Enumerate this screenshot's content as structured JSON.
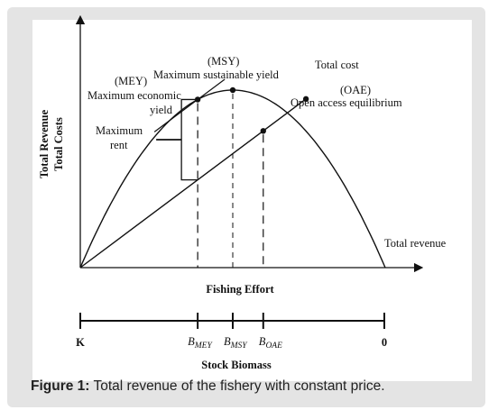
{
  "caption": {
    "prefix": "Figure 1:",
    "text": "Total revenue of the fishery with constant price."
  },
  "chart_data": {
    "type": "line",
    "xlabel": "Fishing Effort",
    "ylabel_line1": "Total Revenue",
    "ylabel_line2": "Total Costs",
    "xlim": [
      0,
      10
    ],
    "ylim": [
      0,
      10
    ],
    "series": [
      {
        "name": "Total revenue",
        "x": [
          0,
          1,
          2,
          3,
          4,
          5,
          6,
          7,
          8,
          9,
          10
        ],
        "y": [
          0,
          3.6,
          6.4,
          8.4,
          9.6,
          10,
          9.6,
          8.4,
          6.4,
          3.6,
          0
        ]
      },
      {
        "name": "Total cost",
        "x": [
          0,
          7.4
        ],
        "y": [
          0,
          9.5
        ]
      }
    ],
    "points": {
      "mey": {
        "x": 3.85,
        "y": 9.47
      },
      "msy": {
        "x": 5,
        "y": 10
      },
      "oae": {
        "x": 6,
        "y": 7.7
      }
    },
    "annotations": {
      "total_cost": "Total cost",
      "total_revenue": "Total revenue",
      "msy_abbr": "(MSY)",
      "msy_text": "Maximum sustainable yield",
      "mey_abbr": "(MEY)",
      "mey_text1": "Maximum economic",
      "mey_text2": "yield",
      "oae_abbr": "(OAE)",
      "oae_text": "Open access equilibrium",
      "rent1": "Maximum",
      "rent2": "rent"
    },
    "biomass_axis": {
      "title": "Stock Biomass",
      "left": "K",
      "right": "0",
      "b_mey": {
        "main": "B",
        "sub": "MEY"
      },
      "b_msy": {
        "main": "B",
        "sub": "MSY"
      },
      "b_oae": {
        "main": "B",
        "sub": "OAE"
      }
    }
  }
}
